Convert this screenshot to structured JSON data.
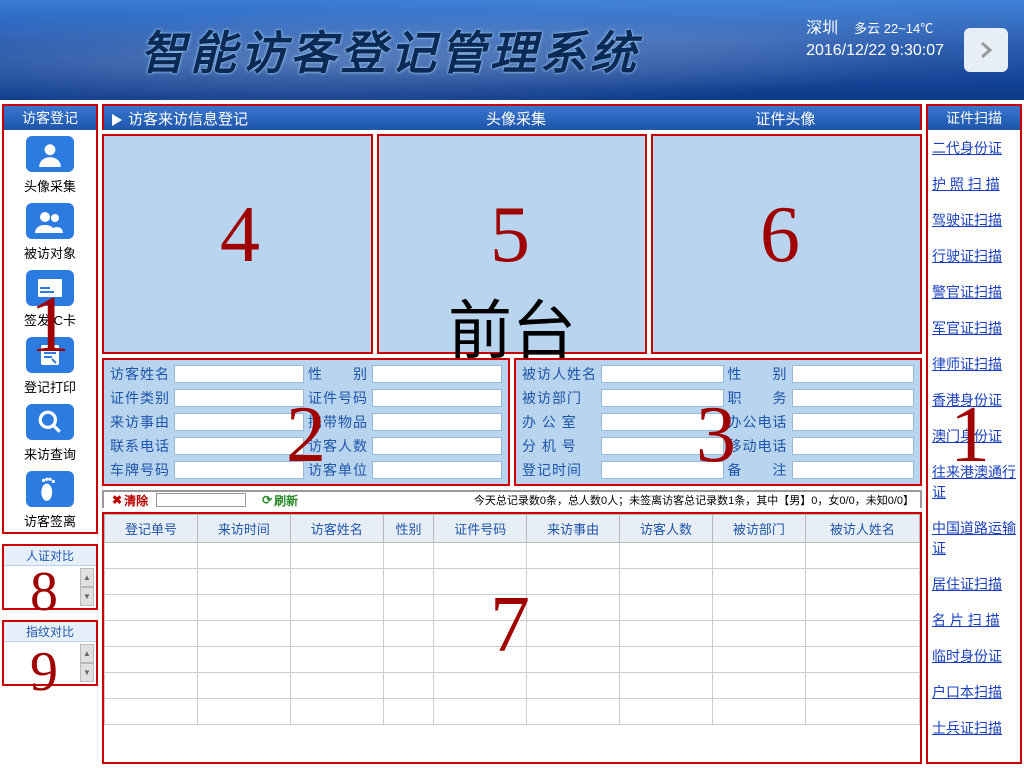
{
  "banner": {
    "title": "智能访客登记管理系统",
    "city": "深圳",
    "weather": "多云 22~14℃",
    "datetime": "2016/12/22  9:30:07"
  },
  "left": {
    "header": "访客登记",
    "items": [
      {
        "label": "头像采集",
        "icon": "person"
      },
      {
        "label": "被访对象",
        "icon": "people"
      },
      {
        "label": "签发IC卡",
        "icon": "card"
      },
      {
        "label": "登记打印",
        "icon": "print"
      },
      {
        "label": "来访查询",
        "icon": "search"
      },
      {
        "label": "访客签离",
        "icon": "foot"
      }
    ],
    "compare1": "人证对比",
    "compare2": "指纹对比"
  },
  "tabs": {
    "t1": "访客来访信息登记",
    "t2": "头像采集",
    "t3": "证件头像"
  },
  "visitor_form": {
    "r1a": "访客姓名",
    "r1b": "性　　别",
    "r2a": "证件类别",
    "r2b": "证件号码",
    "r3a": "来访事由",
    "r3b": "携带物品",
    "r4a": "联系电话",
    "r4b": "访客人数",
    "r5a": "车牌号码",
    "r5b": "访客单位"
  },
  "host_form": {
    "r1a": "被访人姓名",
    "r1b": "性　　别",
    "r2a": "被访部门",
    "r2b": "职　　务",
    "r3a": "办 公 室",
    "r3b": "办公电话",
    "r4a": "分 机 号",
    "r4b": "移动电话",
    "r5a": "登记时间",
    "r5b": "备　　注"
  },
  "toolbar": {
    "clear": "清除",
    "refresh": "刷新",
    "stat": "今天总记录数0条，总人数0人；未签离访客总记录数1条，其中【男】0，女0/0，未知0/0】"
  },
  "table": {
    "cols": [
      "登记单号",
      "来访时间",
      "访客姓名",
      "性别",
      "证件号码",
      "来访事由",
      "访客人数",
      "被访部门",
      "被访人姓名"
    ]
  },
  "right": {
    "header": "证件扫描",
    "items": [
      "二代身份证",
      "护 照 扫 描",
      "驾驶证扫描",
      "行驶证扫描",
      "警官证扫描",
      "军官证扫描",
      "律师证扫描",
      "香港身份证",
      "澳门身份证",
      "往来港澳通行证",
      "中国道路运输证",
      "居住证扫描",
      "名 片 扫 描",
      "临时身份证",
      "户口本扫描",
      "士兵证扫描"
    ]
  },
  "overlay": {
    "title": "前台",
    "n1": "1",
    "n2": "2",
    "n3": "3",
    "n4": "4",
    "n5": "5",
    "n6": "6",
    "n7": "7",
    "n8": "8",
    "n9": "9",
    "n1b": "1"
  }
}
